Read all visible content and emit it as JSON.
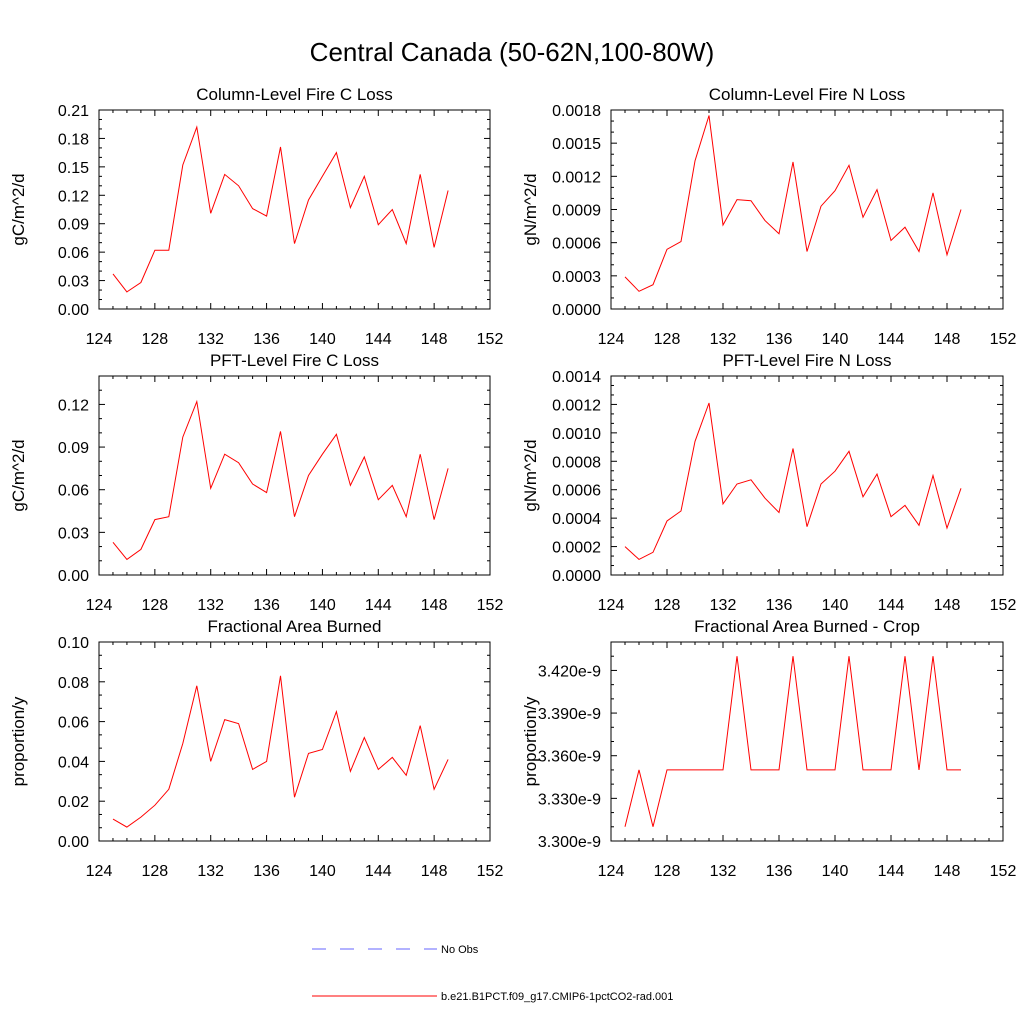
{
  "figure": {
    "title": "Central Canada (50-62N,100-80W)",
    "line_color": "#ff0000",
    "obs_color": "#6666ff"
  },
  "legend": {
    "obs_label": "No Obs",
    "model_label": "b.e21.B1PCT.f09_g17.CMIP6-1pctCO2-rad.001"
  },
  "chart_data": [
    {
      "type": "line",
      "title": "Column-Level Fire C Loss",
      "ylabel": "gC/m^2/d",
      "xlim": [
        124,
        152
      ],
      "ylim": [
        0,
        0.21
      ],
      "xticks": [
        124,
        128,
        132,
        136,
        140,
        144,
        148,
        152
      ],
      "yticks": [
        0,
        0.03,
        0.06,
        0.09,
        0.12,
        0.15,
        0.18,
        0.21
      ],
      "yticklabels": [
        "0.00",
        "0.03",
        "0.06",
        "0.09",
        "0.12",
        "0.15",
        "0.18",
        "0.21"
      ],
      "x": [
        125,
        126,
        127,
        128,
        129,
        130,
        131,
        132,
        133,
        134,
        135,
        136,
        137,
        138,
        139,
        140,
        141,
        142,
        143,
        144,
        145,
        146,
        147,
        148,
        149
      ],
      "series": [
        {
          "values": [
            0.037,
            0.018,
            0.028,
            0.062,
            0.062,
            0.152,
            0.192,
            0.101,
            0.142,
            0.13,
            0.106,
            0.098,
            0.171,
            0.069,
            0.115,
            0.14,
            0.165,
            0.107,
            0.14,
            0.089,
            0.105,
            0.069,
            0.142,
            0.065,
            0.125
          ]
        }
      ]
    },
    {
      "type": "line",
      "title": "Column-Level Fire N Loss",
      "ylabel": "gN/m^2/d",
      "xlim": [
        124,
        152
      ],
      "ylim": [
        0,
        0.0018
      ],
      "xticks": [
        124,
        128,
        132,
        136,
        140,
        144,
        148,
        152
      ],
      "yticks": [
        0,
        0.0003,
        0.0006,
        0.0009,
        0.0012,
        0.0015,
        0.0018
      ],
      "yticklabels": [
        "0.0000",
        "0.0003",
        "0.0006",
        "0.0009",
        "0.0012",
        "0.0015",
        "0.0018"
      ],
      "x": [
        125,
        126,
        127,
        128,
        129,
        130,
        131,
        132,
        133,
        134,
        135,
        136,
        137,
        138,
        139,
        140,
        141,
        142,
        143,
        144,
        145,
        146,
        147,
        148,
        149
      ],
      "series": [
        {
          "values": [
            0.00029,
            0.00016,
            0.00022,
            0.00054,
            0.00061,
            0.00134,
            0.00175,
            0.00076,
            0.00099,
            0.00098,
            0.0008,
            0.00068,
            0.00133,
            0.00052,
            0.00093,
            0.00107,
            0.0013,
            0.00083,
            0.00108,
            0.00062,
            0.00074,
            0.00052,
            0.00105,
            0.00049,
            0.0009
          ]
        }
      ]
    },
    {
      "type": "line",
      "title": "PFT-Level Fire C Loss",
      "ylabel": "gC/m^2/d",
      "xlim": [
        124,
        152
      ],
      "ylim": [
        0,
        0.14
      ],
      "xticks": [
        124,
        128,
        132,
        136,
        140,
        144,
        148,
        152
      ],
      "yticks": [
        0,
        0.03,
        0.06,
        0.09,
        0.12
      ],
      "yticklabels": [
        "0.00",
        "0.03",
        "0.06",
        "0.09",
        "0.12"
      ],
      "x": [
        125,
        126,
        127,
        128,
        129,
        130,
        131,
        132,
        133,
        134,
        135,
        136,
        137,
        138,
        139,
        140,
        141,
        142,
        143,
        144,
        145,
        146,
        147,
        148,
        149
      ],
      "series": [
        {
          "values": [
            0.023,
            0.011,
            0.018,
            0.039,
            0.041,
            0.097,
            0.122,
            0.061,
            0.085,
            0.079,
            0.064,
            0.058,
            0.101,
            0.041,
            0.07,
            0.085,
            0.099,
            0.063,
            0.083,
            0.053,
            0.063,
            0.041,
            0.085,
            0.039,
            0.075
          ]
        }
      ]
    },
    {
      "type": "line",
      "title": "PFT-Level Fire N Loss",
      "ylabel": "gN/m^2/d",
      "xlim": [
        124,
        152
      ],
      "ylim": [
        0,
        0.0014
      ],
      "xticks": [
        124,
        128,
        132,
        136,
        140,
        144,
        148,
        152
      ],
      "yticks": [
        0,
        0.0002,
        0.0004,
        0.0006,
        0.0008,
        0.001,
        0.0012,
        0.0014
      ],
      "yticklabels": [
        "0.0000",
        "0.0002",
        "0.0004",
        "0.0006",
        "0.0008",
        "0.0010",
        "0.0012",
        "0.0014"
      ],
      "x": [
        125,
        126,
        127,
        128,
        129,
        130,
        131,
        132,
        133,
        134,
        135,
        136,
        137,
        138,
        139,
        140,
        141,
        142,
        143,
        144,
        145,
        146,
        147,
        148,
        149
      ],
      "series": [
        {
          "values": [
            0.0002,
            0.00011,
            0.00016,
            0.00038,
            0.00045,
            0.00094,
            0.00121,
            0.0005,
            0.00064,
            0.00067,
            0.00054,
            0.00044,
            0.00089,
            0.00034,
            0.00064,
            0.00073,
            0.00087,
            0.00055,
            0.00071,
            0.00041,
            0.00049,
            0.00035,
            0.0007,
            0.00033,
            0.00061
          ]
        }
      ]
    },
    {
      "type": "line",
      "title": "Fractional Area Burned",
      "ylabel": "proportion/y",
      "xlim": [
        124,
        152
      ],
      "ylim": [
        0,
        0.1
      ],
      "xticks": [
        124,
        128,
        132,
        136,
        140,
        144,
        148,
        152
      ],
      "yticks": [
        0,
        0.02,
        0.04,
        0.06,
        0.08,
        0.1
      ],
      "yticklabels": [
        "0.00",
        "0.02",
        "0.04",
        "0.06",
        "0.08",
        "0.10"
      ],
      "x": [
        125,
        126,
        127,
        128,
        129,
        130,
        131,
        132,
        133,
        134,
        135,
        136,
        137,
        138,
        139,
        140,
        141,
        142,
        143,
        144,
        145,
        146,
        147,
        148,
        149
      ],
      "series": [
        {
          "values": [
            0.011,
            0.007,
            0.012,
            0.018,
            0.026,
            0.049,
            0.078,
            0.04,
            0.061,
            0.059,
            0.036,
            0.04,
            0.083,
            0.022,
            0.044,
            0.046,
            0.065,
            0.035,
            0.052,
            0.036,
            0.042,
            0.033,
            0.058,
            0.026,
            0.041
          ]
        }
      ]
    },
    {
      "type": "line",
      "title": "Fractional Area Burned - Crop",
      "ylabel": "proportion/y",
      "xlim": [
        124,
        152
      ],
      "ylim": [
        3.3e-09,
        3.44e-09
      ],
      "xticks": [
        124,
        128,
        132,
        136,
        140,
        144,
        148,
        152
      ],
      "yticks": [
        3.3e-09,
        3.33e-09,
        3.36e-09,
        3.39e-09,
        3.42e-09
      ],
      "yticklabels": [
        "3.300e-9",
        "3.330e-9",
        "3.360e-9",
        "3.390e-9",
        "3.420e-9"
      ],
      "x": [
        125,
        126,
        127,
        128,
        129,
        130,
        131,
        132,
        133,
        134,
        135,
        136,
        137,
        138,
        139,
        140,
        141,
        142,
        143,
        144,
        145,
        146,
        147,
        148,
        149
      ],
      "series": [
        {
          "values": [
            3.31e-09,
            3.35e-09,
            3.31e-09,
            3.35e-09,
            3.35e-09,
            3.35e-09,
            3.35e-09,
            3.35e-09,
            3.43e-09,
            3.35e-09,
            3.35e-09,
            3.35e-09,
            3.43e-09,
            3.35e-09,
            3.35e-09,
            3.35e-09,
            3.43e-09,
            3.35e-09,
            3.35e-09,
            3.35e-09,
            3.43e-09,
            3.35e-09,
            3.43e-09,
            3.35e-09,
            3.35e-09
          ]
        }
      ]
    }
  ]
}
